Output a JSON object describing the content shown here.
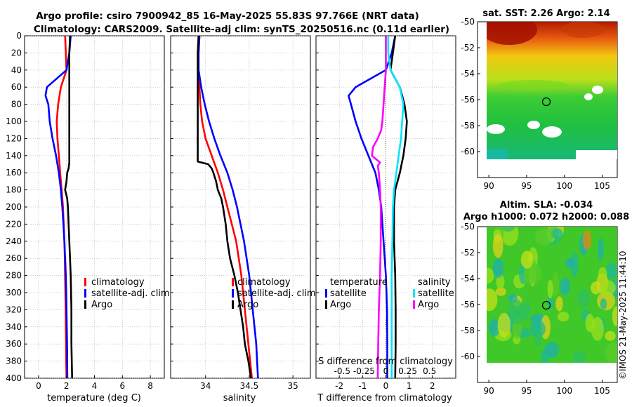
{
  "header": {
    "line1": "Argo profile: csiro 7900942_85 16-May-2025 55.83S 97.766E (NRT data)",
    "line2": "Climatology: CARS2009. Satellite-adj clim: synTS_20250516.nc (0.11d earlier)"
  },
  "colors": {
    "clim": "#ff0000",
    "sat": "#0000ff",
    "argo": "#000000",
    "s_sat": "#00e5ff",
    "s_argo": "#ff00ff",
    "grid": "#b0b0b0"
  },
  "chart_data": [
    {
      "type": "line",
      "panel": "temperature",
      "xlabel": "temperature (deg C)",
      "xlim": [
        -1,
        9
      ],
      "xticks": [
        0,
        2,
        4,
        6,
        8
      ],
      "ylim": [
        400,
        0
      ],
      "yticks": [
        0,
        20,
        40,
        60,
        80,
        100,
        120,
        140,
        160,
        180,
        200,
        220,
        240,
        260,
        280,
        300,
        320,
        340,
        360,
        380,
        400
      ],
      "legend": [
        "climatology",
        "satellite-adj. clim",
        "Argo"
      ],
      "series": [
        {
          "name": "climatology",
          "color": "#ff0000",
          "depth": [
            0,
            20,
            40,
            60,
            80,
            100,
            120,
            140,
            160,
            180,
            200,
            220,
            240,
            260,
            280,
            300,
            320,
            340,
            360,
            380,
            400
          ],
          "values": [
            1.9,
            1.95,
            2.0,
            1.6,
            1.4,
            1.3,
            1.35,
            1.45,
            1.55,
            1.65,
            1.75,
            1.8,
            1.85,
            1.88,
            1.9,
            1.92,
            1.94,
            1.95,
            1.97,
            1.98,
            2.0
          ]
        },
        {
          "name": "satellite-adj. clim",
          "color": "#0000ff",
          "depth": [
            0,
            20,
            40,
            60,
            70,
            80,
            100,
            120,
            140,
            160,
            180,
            200,
            220,
            240,
            260,
            280,
            300,
            320,
            340,
            360,
            380,
            400
          ],
          "values": [
            2.3,
            2.2,
            2.0,
            0.6,
            0.5,
            0.7,
            0.8,
            1.0,
            1.25,
            1.45,
            1.6,
            1.7,
            1.78,
            1.85,
            1.9,
            1.95,
            1.98,
            2.0,
            2.02,
            2.04,
            2.05,
            2.06
          ]
        },
        {
          "name": "Argo",
          "color": "#000000",
          "depth": [
            0,
            20,
            40,
            60,
            80,
            100,
            120,
            140,
            148,
            155,
            160,
            170,
            180,
            190,
            200,
            240,
            280,
            320,
            360,
            400
          ],
          "values": [
            2.25,
            2.2,
            2.2,
            2.2,
            2.2,
            2.2,
            2.2,
            2.2,
            2.2,
            2.15,
            2.05,
            2.0,
            1.9,
            2.05,
            2.1,
            2.2,
            2.3,
            2.35,
            2.35,
            2.4
          ]
        }
      ]
    },
    {
      "type": "line",
      "panel": "salinity",
      "xlabel": "salinity",
      "xlim": [
        33.6,
        35.2
      ],
      "xticks": [
        34,
        34.5,
        35
      ],
      "ylim": [
        400,
        0
      ],
      "legend": [
        "climatology",
        "satellite-adj. clim",
        "Argo"
      ],
      "series": [
        {
          "name": "climatology",
          "color": "#ff0000",
          "depth": [
            0,
            20,
            40,
            60,
            80,
            100,
            120,
            140,
            160,
            180,
            200,
            220,
            240,
            260,
            280,
            300,
            320,
            340,
            360,
            380,
            400
          ],
          "values": [
            33.93,
            33.92,
            33.92,
            33.93,
            33.94,
            33.96,
            34.0,
            34.07,
            34.14,
            34.2,
            34.25,
            34.3,
            34.35,
            34.38,
            34.41,
            34.43,
            34.45,
            34.47,
            34.49,
            34.51,
            34.53
          ]
        },
        {
          "name": "satellite-adj. clim",
          "color": "#0000ff",
          "depth": [
            0,
            20,
            40,
            60,
            80,
            100,
            120,
            140,
            160,
            180,
            200,
            220,
            240,
            260,
            280,
            300,
            320,
            340,
            360,
            380,
            400
          ],
          "values": [
            33.93,
            33.92,
            33.92,
            33.95,
            33.99,
            34.04,
            34.1,
            34.17,
            34.25,
            34.31,
            34.36,
            34.4,
            34.44,
            34.47,
            34.5,
            34.52,
            34.54,
            34.56,
            34.58,
            34.59,
            34.6
          ]
        },
        {
          "name": "Argo",
          "color": "#000000",
          "depth": [
            0,
            20,
            40,
            60,
            80,
            100,
            120,
            140,
            147,
            150,
            155,
            160,
            170,
            180,
            190,
            200,
            220,
            240,
            260,
            280,
            300,
            320,
            340,
            360,
            380,
            400
          ],
          "values": [
            33.92,
            33.91,
            33.91,
            33.91,
            33.91,
            33.91,
            33.91,
            33.91,
            33.91,
            34.03,
            34.07,
            34.09,
            34.12,
            34.14,
            34.18,
            34.2,
            34.23,
            34.25,
            34.28,
            34.33,
            34.37,
            34.4,
            34.43,
            34.45,
            34.49,
            34.52
          ]
        }
      ]
    },
    {
      "type": "line",
      "panel": "difference",
      "xlabel": "T difference from climatology",
      "xlabel_top": "S difference from climatology",
      "xlim": [
        -3,
        3
      ],
      "xticks": [
        -2,
        -1,
        0,
        1,
        2
      ],
      "xtick_labels_s": [
        "-0.5",
        "-0.25",
        "0",
        "0.25",
        "0.5"
      ],
      "xticks_s_pos": [
        -1.875,
        -0.9375,
        0,
        0.9375,
        1.875
      ],
      "ylim": [
        400,
        0
      ],
      "legend": {
        "temperature": "temperature",
        "salinity": "salinity",
        "t_sat": "satellite",
        "t_argo": "Argo",
        "s_sat": "satellite",
        "s_argo": "Argo"
      },
      "series": [
        {
          "name": "T satellite",
          "color": "#0000ff",
          "depth": [
            0,
            20,
            40,
            60,
            70,
            80,
            100,
            120,
            140,
            160,
            180,
            200,
            240,
            280,
            320,
            360,
            400
          ],
          "values": [
            0.4,
            0.25,
            0.0,
            -1.3,
            -1.6,
            -1.5,
            -1.3,
            -1.05,
            -0.75,
            -0.45,
            -0.3,
            -0.2,
            -0.1,
            0.0,
            0.05,
            0.06,
            0.06
          ]
        },
        {
          "name": "T Argo",
          "color": "#000000",
          "depth": [
            0,
            20,
            40,
            60,
            80,
            100,
            120,
            140,
            160,
            170,
            180,
            200,
            240,
            280,
            320,
            360,
            400
          ],
          "values": [
            0.4,
            0.3,
            0.2,
            0.6,
            0.8,
            0.9,
            0.85,
            0.75,
            0.6,
            0.5,
            0.4,
            0.35,
            0.35,
            0.4,
            0.42,
            0.42,
            0.4
          ]
        },
        {
          "name": "S satellite",
          "color": "#00e5ff",
          "depth": [
            0,
            20,
            40,
            60,
            80,
            100,
            120,
            140,
            160,
            180,
            200,
            240,
            280,
            320,
            360,
            400
          ],
          "values": [
            0.1,
            0.1,
            0.2,
            0.6,
            0.75,
            0.7,
            0.65,
            0.55,
            0.45,
            0.35,
            0.3,
            0.28,
            0.25,
            0.25,
            0.25,
            0.25
          ]
        },
        {
          "name": "S Argo",
          "color": "#ff00ff",
          "depth": [
            0,
            20,
            40,
            60,
            80,
            100,
            110,
            120,
            130,
            140,
            148,
            152,
            160,
            180,
            200,
            240,
            280,
            320,
            360,
            400
          ],
          "values": [
            0.0,
            0.0,
            0.0,
            -0.05,
            -0.1,
            -0.15,
            -0.2,
            -0.35,
            -0.55,
            -0.6,
            -0.25,
            -0.35,
            -0.3,
            -0.25,
            -0.22,
            -0.22,
            -0.25,
            -0.3,
            -0.33,
            -0.35
          ]
        }
      ]
    },
    {
      "type": "heatmap",
      "panel": "sst-map",
      "title": "sat. SST: 2.26 Argo: 2.14",
      "xlim": [
        88.5,
        107
      ],
      "ylim": [
        -62,
        -50
      ],
      "xticks": [
        90,
        95,
        100,
        105
      ],
      "yticks": [
        -50,
        -52,
        -54,
        -56,
        -58,
        -60
      ],
      "data_extent": {
        "lon": [
          89.5,
          106.5
        ],
        "lat": [
          -60,
          -50
        ]
      },
      "profile_location": {
        "lon": 97.766,
        "lat": -55.83
      }
    },
    {
      "type": "heatmap",
      "panel": "sla-map",
      "title": "Altim. SLA: -0.034",
      "subtitle": "Argo h1000: 0.072 h2000: 0.088",
      "xlim": [
        88.5,
        107
      ],
      "ylim": [
        -62,
        -50
      ],
      "xticks": [
        90,
        95,
        100,
        105
      ],
      "yticks": [
        -50,
        -52,
        -54,
        -56,
        -58,
        -60
      ],
      "data_extent": {
        "lon": [
          89.5,
          106.5
        ],
        "lat": [
          -60,
          -50
        ]
      },
      "profile_location": {
        "lon": 97.766,
        "lat": -55.83
      }
    }
  ],
  "credit": "©IMOS 21-May-2025 11:44:10"
}
